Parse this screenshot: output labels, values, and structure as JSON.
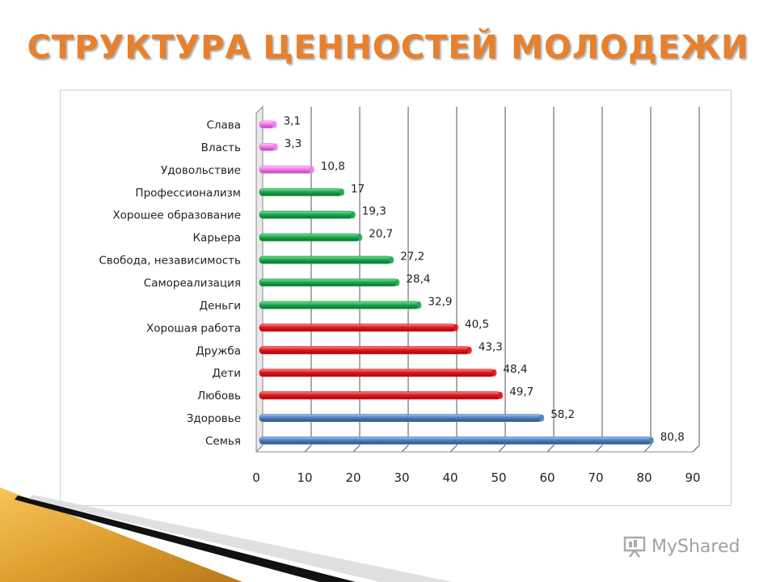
{
  "title": "СТРУКТУРА  ЦЕННОСТЕЙ  МОЛОДЕЖИ",
  "watermark": "MyShared",
  "colors": {
    "title": "#e8802c",
    "pink": "#ee7ee6",
    "green": "#1fa84f",
    "red": "#e0171f",
    "blue": "#4f81bd"
  },
  "chart_data": {
    "type": "bar",
    "orientation": "horizontal",
    "categories": [
      "Слава",
      "Власть",
      "Удовольствие",
      "Профессионализм",
      "Хорошее образование",
      "Карьера",
      "Свобода, независимость",
      "Самореализация",
      "Деньги",
      "Хорошая работа",
      "Дружба",
      "Дети",
      "Любовь",
      "Здоровье",
      "Семья"
    ],
    "values": [
      3.1,
      3.3,
      10.8,
      17,
      19.3,
      20.7,
      27.2,
      28.4,
      32.9,
      40.5,
      43.3,
      48.4,
      49.7,
      58.2,
      80.8
    ],
    "value_labels": [
      "3,1",
      "3,3",
      "10,8",
      "17",
      "19,3",
      "20,7",
      "27,2",
      "28,4",
      "32,9",
      "40,5",
      "43,3",
      "48,4",
      "49,7",
      "58,2",
      "80,8"
    ],
    "bar_colors": [
      "pink",
      "pink",
      "pink",
      "green",
      "green",
      "green",
      "green",
      "green",
      "green",
      "red",
      "red",
      "red",
      "red",
      "blue",
      "blue"
    ],
    "xlim": [
      0,
      90
    ],
    "x_ticks": [
      "0",
      "10",
      "20",
      "30",
      "40",
      "50",
      "60",
      "70",
      "80",
      "90"
    ],
    "grid": true,
    "xlabel": "",
    "ylabel": ""
  }
}
